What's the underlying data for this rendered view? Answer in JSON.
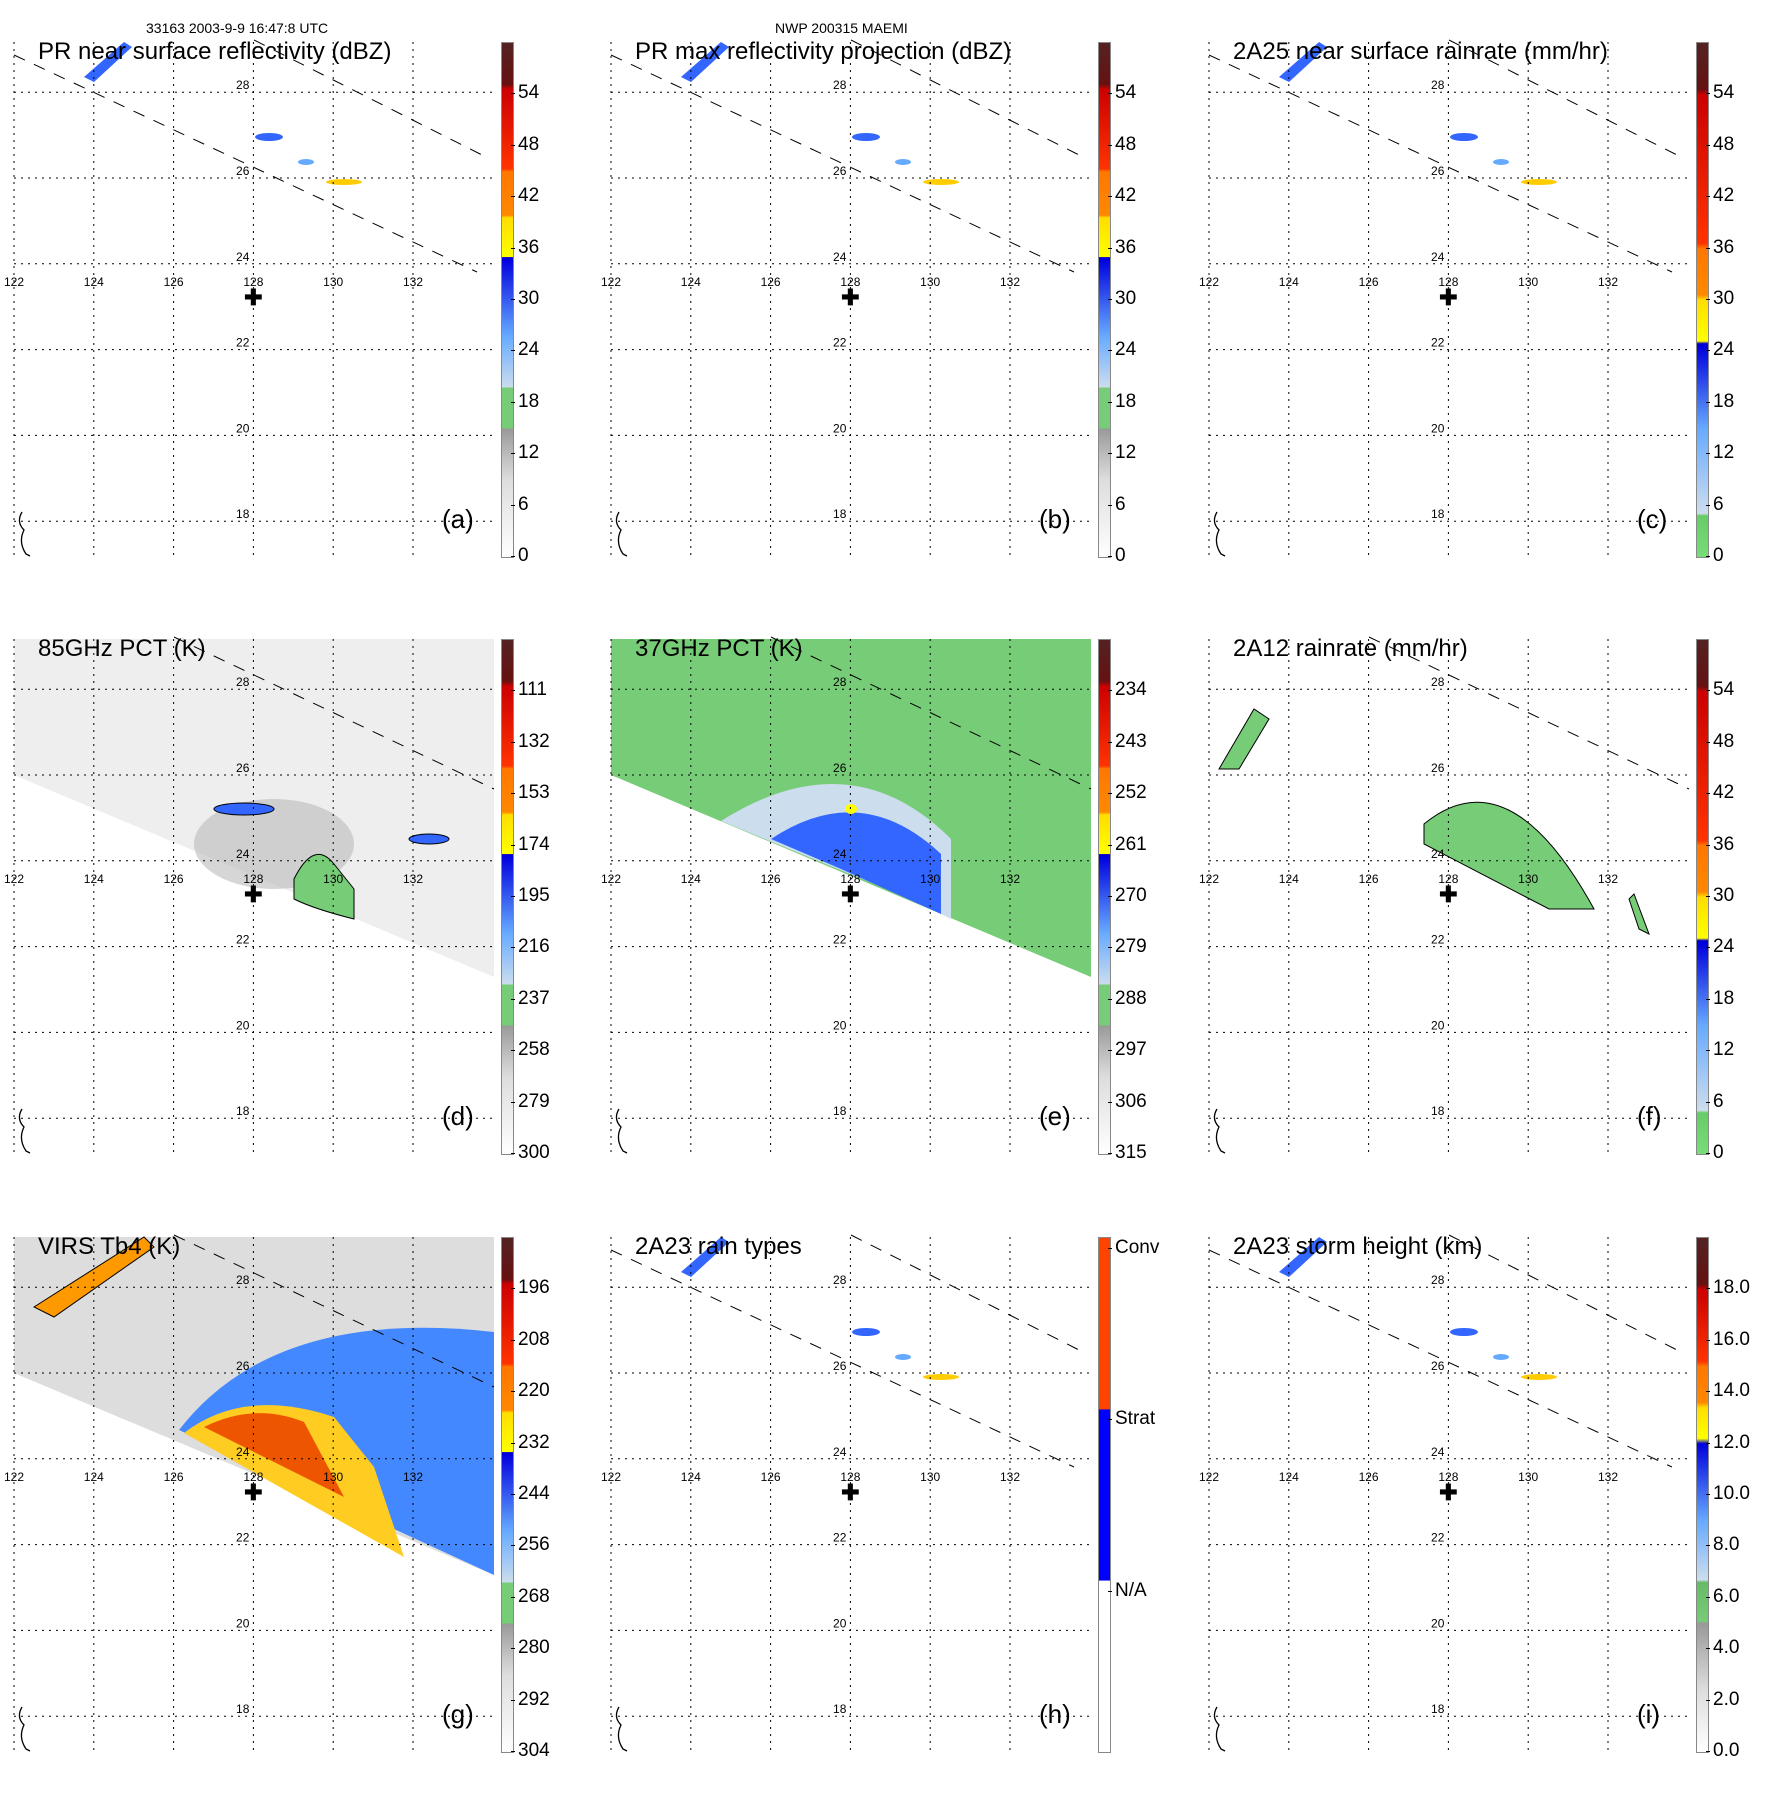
{
  "header": {
    "orbit_time": "33163 2003-9-9 16:47:8 UTC",
    "storm": "NWP 200315 MAEMI"
  },
  "grid": {
    "lon_labels": [
      "122",
      "124",
      "126",
      "128",
      "130",
      "132"
    ],
    "lat_labels": [
      "28",
      "26",
      "24",
      "22",
      "20",
      "18"
    ]
  },
  "panels": [
    {
      "title": "PR near surface reflectivity (dBZ)",
      "label": "(a)",
      "colorbar": "refl",
      "ticks": [
        "0",
        "6",
        "12",
        "18",
        "24",
        "30",
        "36",
        "42",
        "48",
        "54"
      ],
      "background": "none"
    },
    {
      "title": "PR max reflectivity projection (dBZ)",
      "label": "(b)",
      "colorbar": "refl",
      "ticks": [
        "0",
        "6",
        "12",
        "18",
        "24",
        "30",
        "36",
        "42",
        "48",
        "54"
      ],
      "background": "none"
    },
    {
      "title": "2A25 near surface rainrate (mm/hr)",
      "label": "(c)",
      "colorbar": "rain",
      "ticks": [
        "0",
        "6",
        "12",
        "18",
        "24",
        "30",
        "36",
        "42",
        "48",
        "54"
      ],
      "background": "none"
    },
    {
      "title": "85GHz PCT (K)",
      "label": "(d)",
      "colorbar": "refl",
      "ticks": [
        "300",
        "279",
        "258",
        "237",
        "216",
        "195",
        "174",
        "153",
        "132",
        "111"
      ],
      "background": "pct85"
    },
    {
      "title": "37GHz PCT (K)",
      "label": "(e)",
      "colorbar": "refl",
      "ticks": [
        "315",
        "306",
        "297",
        "288",
        "279",
        "270",
        "261",
        "252",
        "243",
        "234"
      ],
      "background": "pct37"
    },
    {
      "title": "2A12 rainrate (mm/hr)",
      "label": "(f)",
      "colorbar": "rain",
      "ticks": [
        "0",
        "6",
        "12",
        "18",
        "24",
        "30",
        "36",
        "42",
        "48",
        "54"
      ],
      "background": "tmi"
    },
    {
      "title": "VIRS Tb4 (K)",
      "label": "(g)",
      "colorbar": "refl",
      "ticks": [
        "304",
        "292",
        "280",
        "268",
        "256",
        "244",
        "232",
        "220",
        "208",
        "196"
      ],
      "background": "virs"
    },
    {
      "title": "2A23 rain types",
      "label": "(h)",
      "colorbar": "cat",
      "ticks": [
        "N/A",
        "Strat",
        "Conv"
      ],
      "background": "none"
    },
    {
      "title": "2A23 storm height (km)",
      "label": "(i)",
      "colorbar": "ht",
      "ticks": [
        "0.0",
        "2.0",
        "4.0",
        "6.0",
        "8.0",
        "10.0",
        "12.0",
        "14.0",
        "16.0",
        "18.0"
      ],
      "background": "none"
    }
  ],
  "colors": {
    "conv": "#ff4400",
    "strat": "#0000ff",
    "na": "#ffffff"
  }
}
